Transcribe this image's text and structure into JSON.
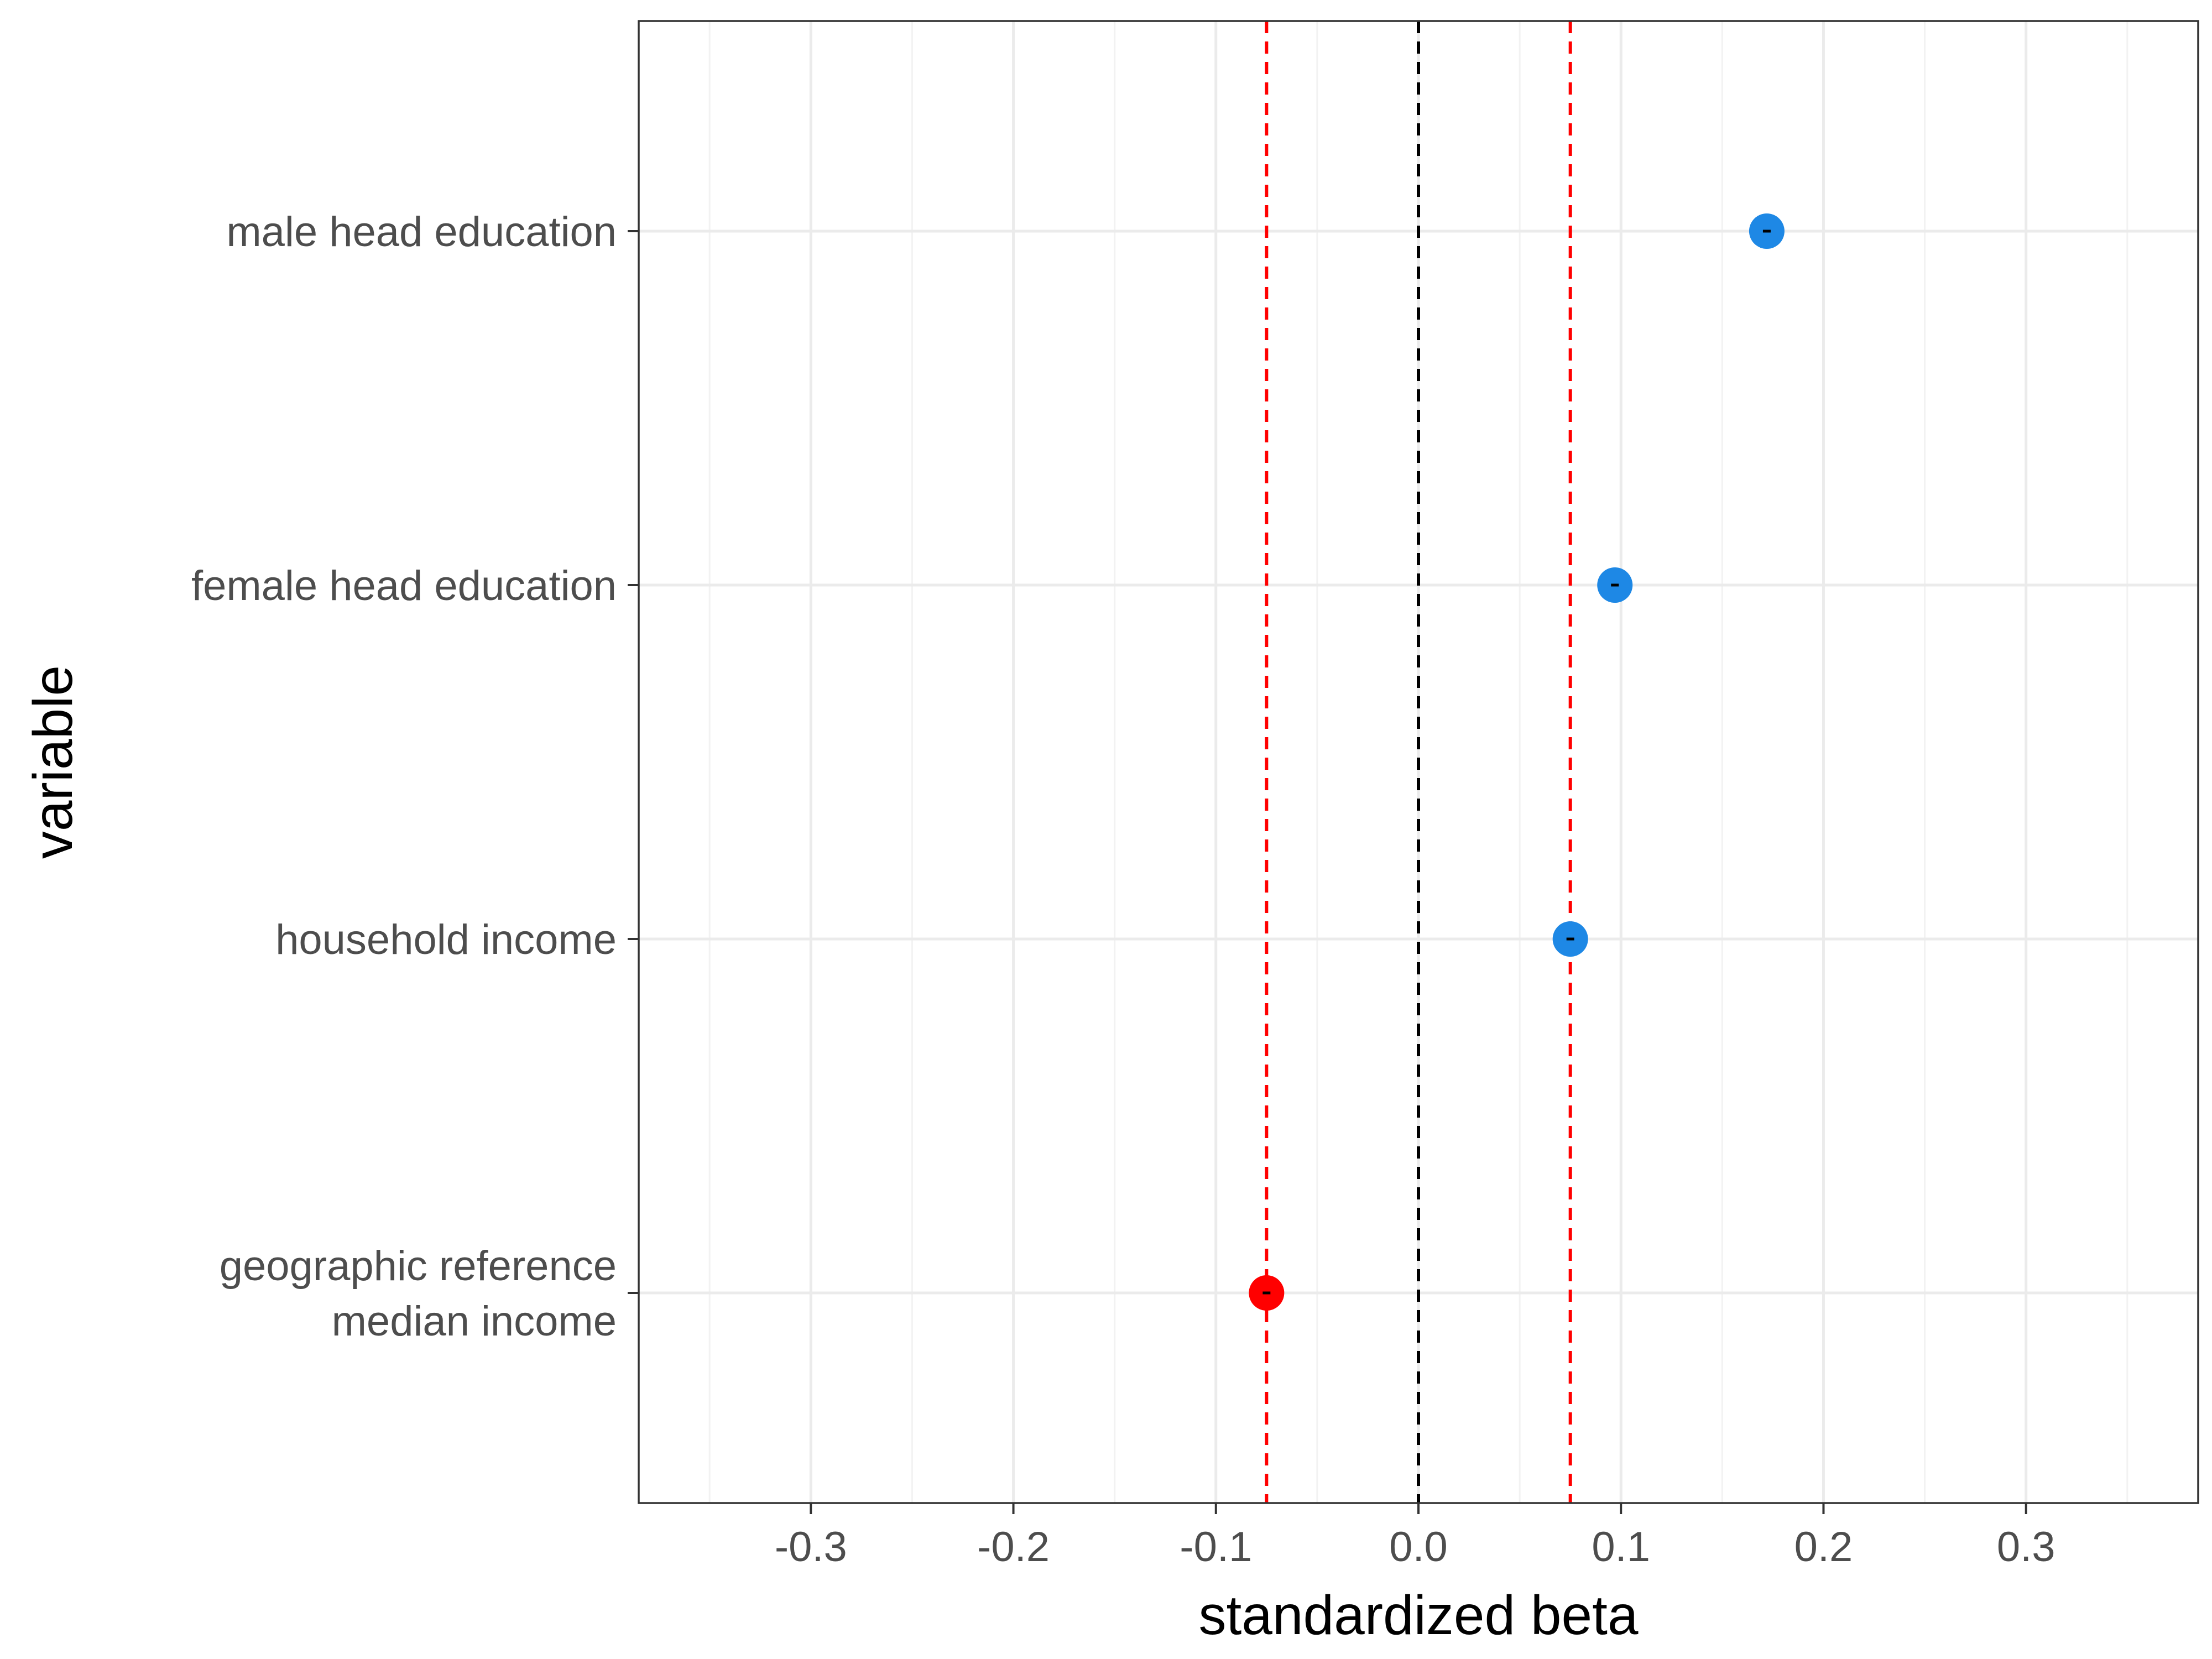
{
  "chart_data": {
    "type": "scatter",
    "xlabel": "standardized beta",
    "ylabel": "variable",
    "xlim": [
      -0.385,
      0.385
    ],
    "x_ticks": [
      "-0.3",
      "-0.2",
      "-0.1",
      "0.0",
      "0.1",
      "0.2",
      "0.3"
    ],
    "x_tick_values": [
      -0.3,
      -0.2,
      -0.1,
      0.0,
      0.1,
      0.2,
      0.3
    ],
    "x_minor_ticks": [
      -0.35,
      -0.25,
      -0.15,
      -0.05,
      0.05,
      0.15,
      0.25,
      0.35
    ],
    "categories": [
      "male head education",
      "female head education",
      "household income",
      "geographic reference\nmedian income"
    ],
    "points": [
      {
        "category": "male head education",
        "x": 0.172,
        "color": "#1E88E5"
      },
      {
        "category": "female head education",
        "x": 0.097,
        "color": "#1E88E5"
      },
      {
        "category": "household income",
        "x": 0.075,
        "color": "#1E88E5"
      },
      {
        "category": "geographic reference\nmedian income",
        "x": -0.075,
        "color": "#FF0000"
      }
    ],
    "reference_lines": [
      {
        "x": 0.0,
        "color": "#000000",
        "style": "dashed"
      },
      {
        "x": -0.075,
        "color": "#FF0000",
        "style": "dashed"
      },
      {
        "x": 0.075,
        "color": "#FF0000",
        "style": "dashed"
      }
    ],
    "grid": true,
    "theme": "bw"
  }
}
